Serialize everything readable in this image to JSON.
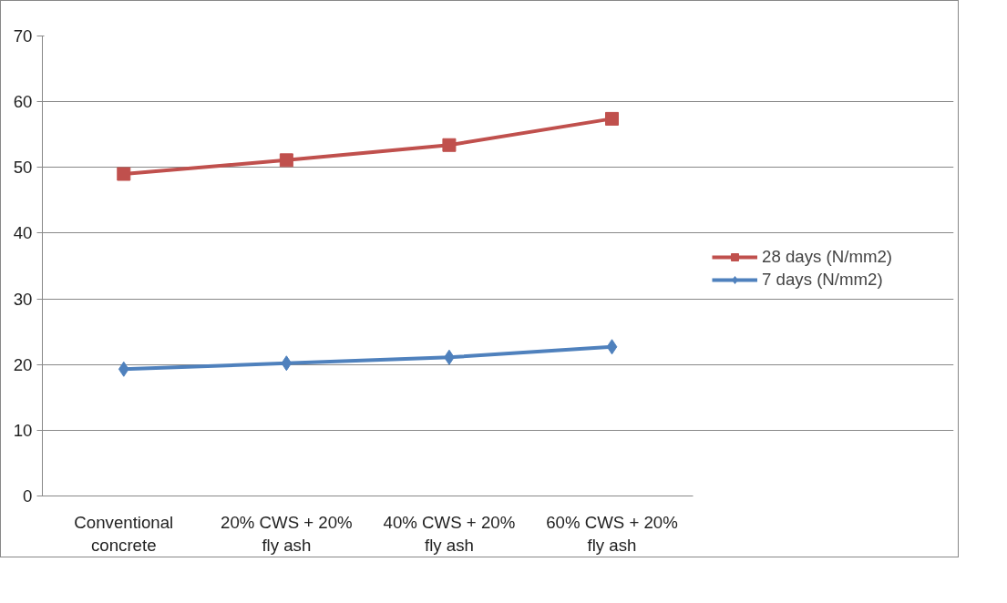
{
  "chart_data": {
    "type": "line",
    "categories": [
      "Conventional concrete",
      "20% CWS + 20% fly ash",
      "40% CWS + 20% fly ash",
      "60% CWS + 20% fly ash"
    ],
    "series": [
      {
        "name": "28 days (N/mm2)",
        "color": "#c0504d",
        "marker": "square",
        "values": [
          49.0,
          51.1,
          53.4,
          57.4
        ]
      },
      {
        "name": "7 days (N/mm2)",
        "color": "#4f81bd",
        "marker": "diamond",
        "values": [
          19.3,
          20.2,
          21.1,
          22.7
        ]
      }
    ],
    "ylim": [
      0,
      70
    ],
    "yticks": [
      0,
      10,
      20,
      30,
      40,
      50,
      60,
      70
    ],
    "grid": "y",
    "legend": "right"
  }
}
